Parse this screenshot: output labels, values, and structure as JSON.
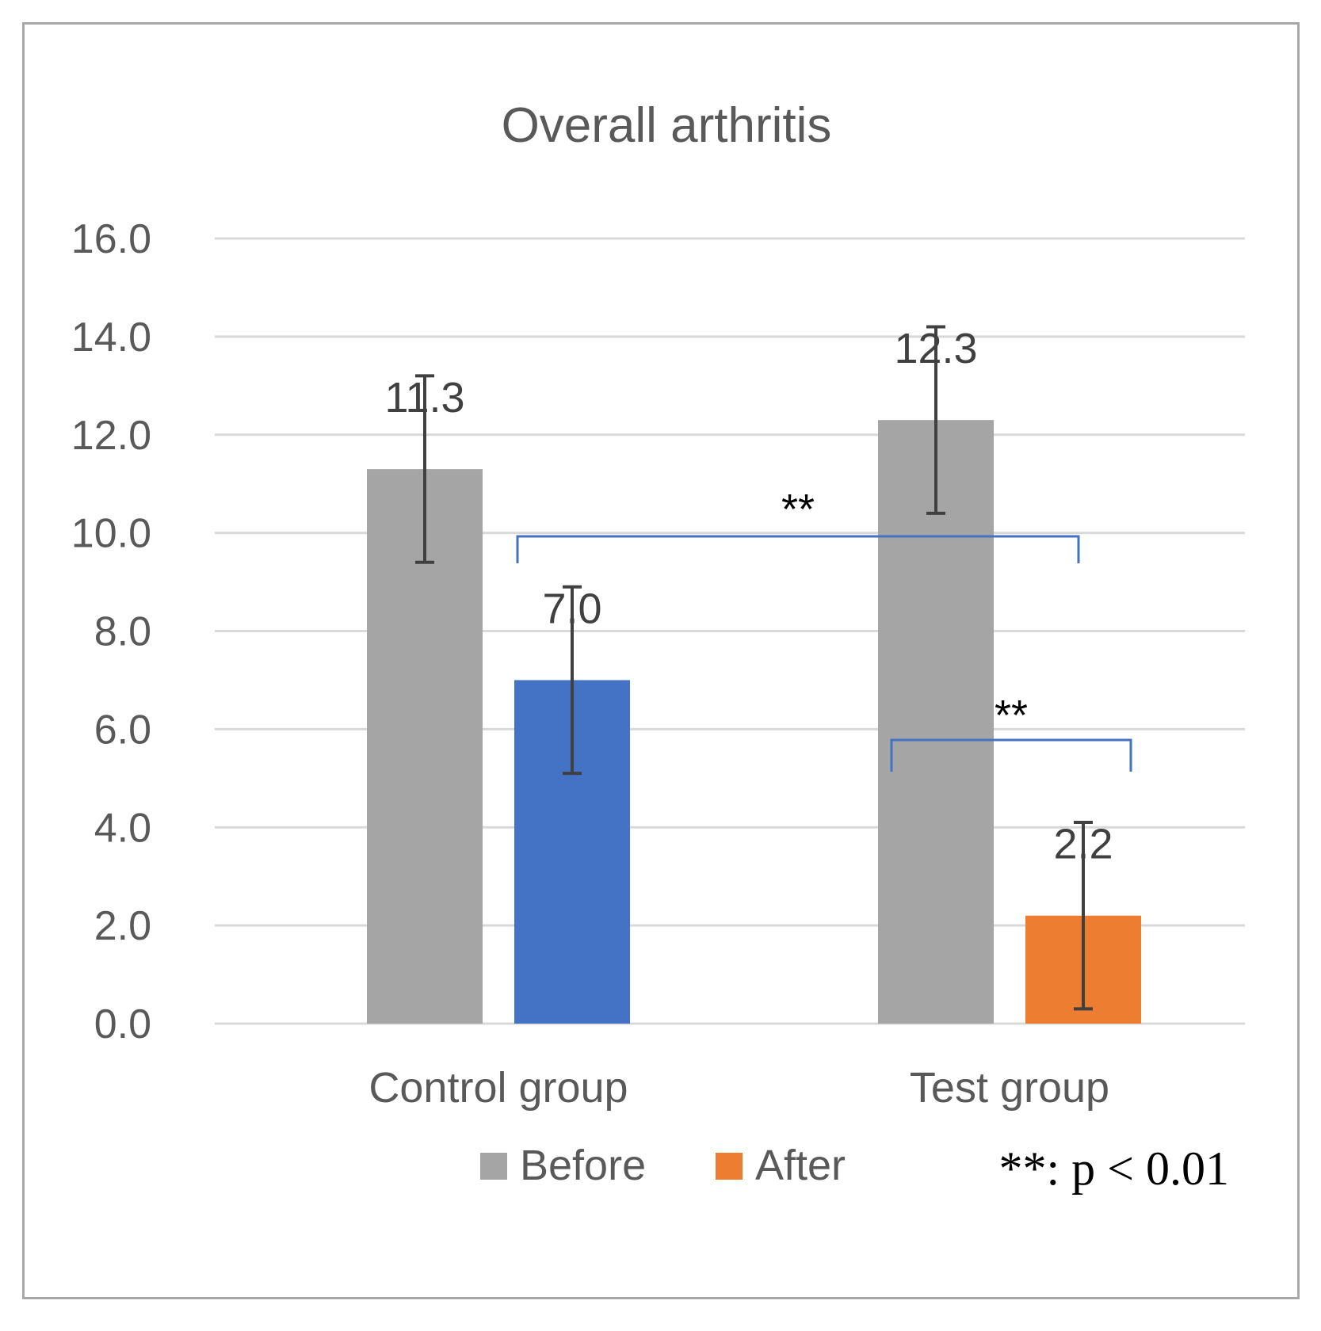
{
  "chart_data": {
    "type": "bar",
    "title": "Overall arthritis",
    "categories": [
      "Control group",
      "Test group"
    ],
    "series": [
      {
        "name": "Before",
        "values": [
          11.3,
          12.3
        ],
        "errors": [
          1.9,
          1.9
        ],
        "labels": [
          "11.3",
          "12.3"
        ]
      },
      {
        "name": "After",
        "values": [
          7.0,
          2.2
        ],
        "errors": [
          1.9,
          1.9
        ],
        "labels": [
          "7.0",
          "2.2"
        ]
      }
    ],
    "bar_colors": [
      [
        "#a5a5a5",
        "#4472c4"
      ],
      [
        "#a5a5a5",
        "#ed7d31"
      ]
    ],
    "legend_colors": [
      "#a5a5a5",
      "#ed7d31"
    ],
    "ylim": [
      0,
      16
    ],
    "yticks": [
      "0.0",
      "2.0",
      "4.0",
      "6.0",
      "8.0",
      "10.0",
      "12.0",
      "14.0",
      "16.0"
    ],
    "grid": true,
    "legend_position": "bottom",
    "significance": [
      {
        "label": "**",
        "between": "Control group After vs Test group After"
      },
      {
        "label": "**",
        "between": "Test group Before vs Test group After"
      }
    ],
    "footnote": "**: p < 0.01"
  },
  "colors": {
    "grid": "#d9d9d9",
    "text": "#595959",
    "error_bar": "#404040",
    "bracket": "#4472c4"
  }
}
